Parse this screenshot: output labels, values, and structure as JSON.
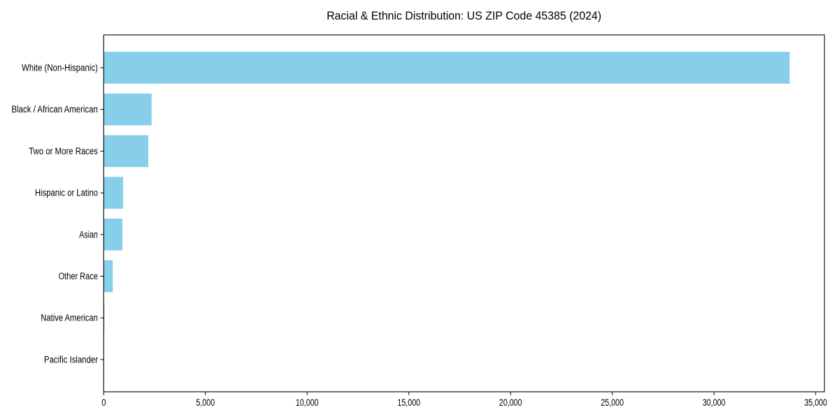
{
  "page": {
    "background_color": "#ffffff"
  },
  "chart_data": {
    "type": "bar",
    "orientation": "horizontal",
    "title": "Racial & Ethnic Distribution: US ZIP Code 45385 (2024)",
    "categories": [
      "White (Non-Hispanic)",
      "Black / African American",
      "Two or More Races",
      "Hispanic or Latino",
      "Asian",
      "Other Race",
      "Native American",
      "Pacific Islander"
    ],
    "values": [
      33720,
      2355,
      2190,
      955,
      920,
      445,
      35,
      8
    ],
    "xlabel": "",
    "ylabel": "",
    "xlim": [
      0,
      35430
    ],
    "xticks": {
      "values": [
        0,
        5000,
        10000,
        15000,
        20000,
        25000,
        30000,
        35000
      ],
      "labels": [
        "0",
        "5,000",
        "10,000",
        "15,000",
        "20,000",
        "25,000",
        "30,000",
        "35,000"
      ]
    },
    "grid": false,
    "legend": false,
    "bar_color": "#87CEEB",
    "axis_color": "#000000",
    "text_color": "#000000",
    "plot_background_color": "#ffffff"
  }
}
